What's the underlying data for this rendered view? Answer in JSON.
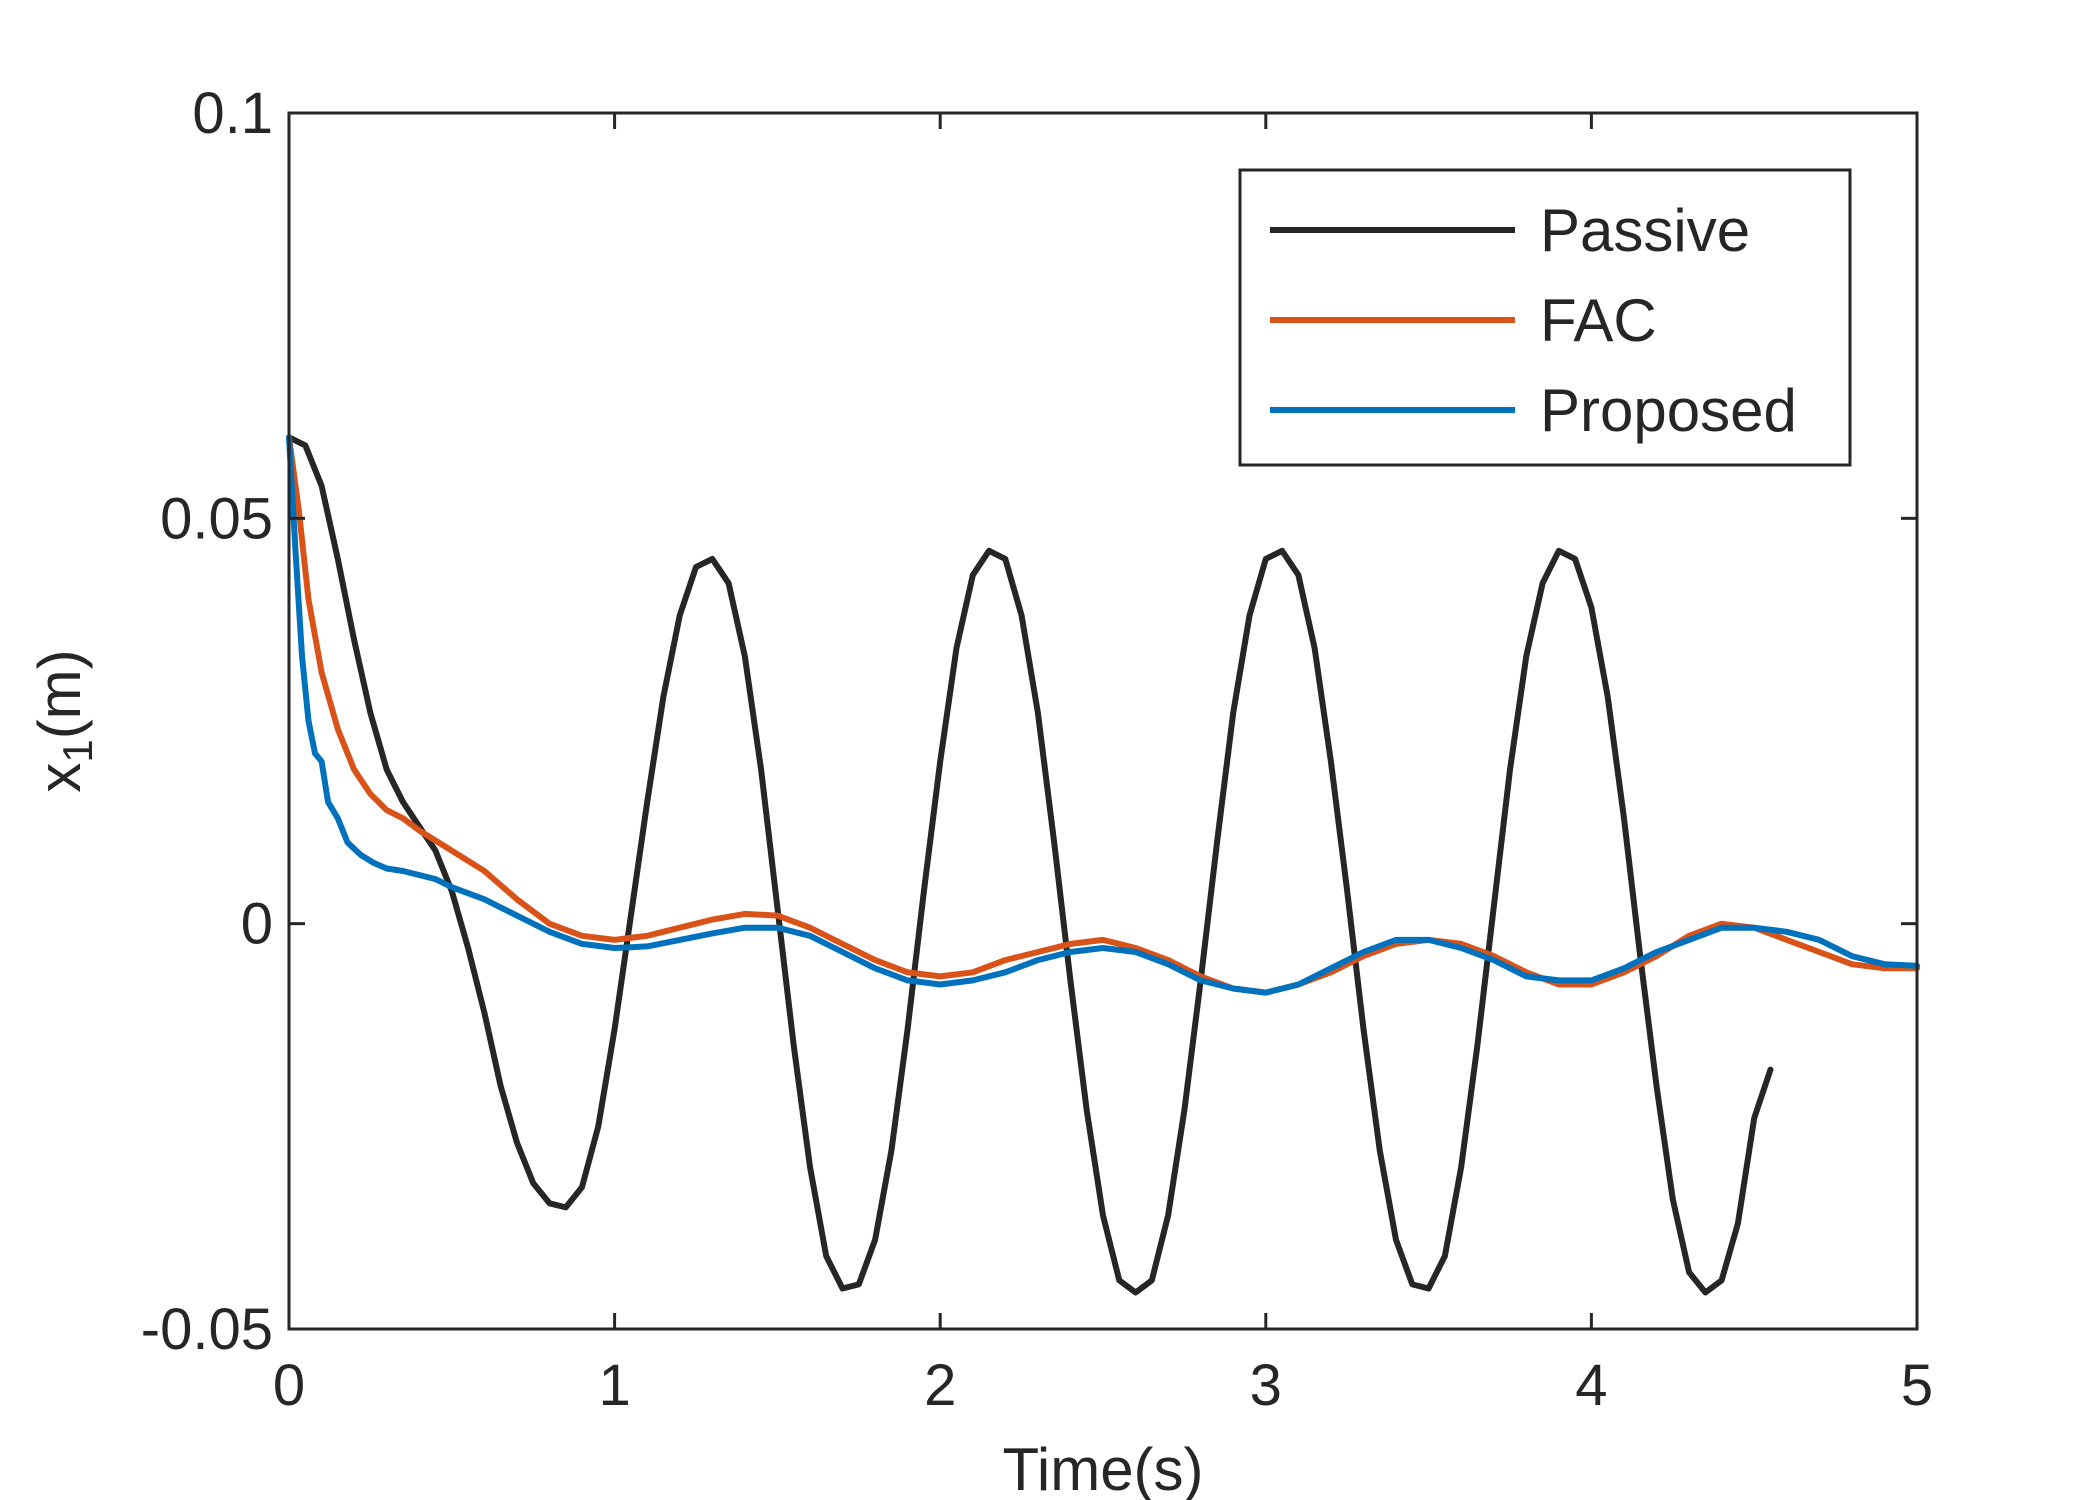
{
  "chart_data": {
    "type": "line",
    "title": "",
    "xlabel": "Time(s)",
    "ylabel_main": "x",
    "ylabel_sub": "1",
    "ylabel_unit": "(m)",
    "xlim": [
      0,
      5
    ],
    "ylim": [
      -0.05,
      0.1
    ],
    "xticks": [
      0,
      1,
      2,
      3,
      4,
      5
    ],
    "xtick_labels": [
      "0",
      "1",
      "2",
      "3",
      "4",
      "5"
    ],
    "yticks": [
      -0.05,
      0,
      0.05,
      0.1
    ],
    "ytick_labels": [
      "-0.05",
      "0",
      "0.05",
      "0.1"
    ],
    "grid": false,
    "legend_position": "top-right",
    "series": [
      {
        "name": "Passive",
        "color": "#262626",
        "points": [
          [
            0,
            0.06
          ],
          [
            0.05,
            0.059
          ],
          [
            0.1,
            0.054
          ],
          [
            0.15,
            0.045
          ],
          [
            0.2,
            0.035
          ],
          [
            0.25,
            0.026
          ],
          [
            0.3,
            0.019
          ],
          [
            0.35,
            0.015
          ],
          [
            0.4,
            0.012
          ],
          [
            0.45,
            0.009
          ],
          [
            0.5,
            0.004
          ],
          [
            0.55,
            -0.003
          ],
          [
            0.6,
            -0.011
          ],
          [
            0.65,
            -0.02
          ],
          [
            0.7,
            -0.027
          ],
          [
            0.75,
            -0.032
          ],
          [
            0.8,
            -0.0345
          ],
          [
            0.85,
            -0.035
          ],
          [
            0.9,
            -0.0325
          ],
          [
            0.95,
            -0.025
          ],
          [
            1.0,
            -0.013
          ],
          [
            1.05,
            0.001
          ],
          [
            1.1,
            0.015
          ],
          [
            1.15,
            0.028
          ],
          [
            1.2,
            0.038
          ],
          [
            1.25,
            0.044
          ],
          [
            1.3,
            0.045
          ],
          [
            1.35,
            0.042
          ],
          [
            1.4,
            0.033
          ],
          [
            1.45,
            0.019
          ],
          [
            1.5,
            0.002
          ],
          [
            1.55,
            -0.015
          ],
          [
            1.6,
            -0.03
          ],
          [
            1.65,
            -0.041
          ],
          [
            1.7,
            -0.045
          ],
          [
            1.75,
            -0.0445
          ],
          [
            1.8,
            -0.039
          ],
          [
            1.85,
            -0.028
          ],
          [
            1.9,
            -0.013
          ],
          [
            1.95,
            0.004
          ],
          [
            2.0,
            0.02
          ],
          [
            2.05,
            0.034
          ],
          [
            2.1,
            0.043
          ],
          [
            2.15,
            0.046
          ],
          [
            2.2,
            0.045
          ],
          [
            2.25,
            0.038
          ],
          [
            2.3,
            0.026
          ],
          [
            2.35,
            0.01
          ],
          [
            2.4,
            -0.007
          ],
          [
            2.45,
            -0.023
          ],
          [
            2.5,
            -0.036
          ],
          [
            2.55,
            -0.044
          ],
          [
            2.6,
            -0.0455
          ],
          [
            2.65,
            -0.044
          ],
          [
            2.7,
            -0.036
          ],
          [
            2.75,
            -0.023
          ],
          [
            2.8,
            -0.007
          ],
          [
            2.85,
            0.01
          ],
          [
            2.9,
            0.026
          ],
          [
            2.95,
            0.038
          ],
          [
            3.0,
            0.045
          ],
          [
            3.05,
            0.046
          ],
          [
            3.1,
            0.043
          ],
          [
            3.15,
            0.034
          ],
          [
            3.2,
            0.02
          ],
          [
            3.25,
            0.004
          ],
          [
            3.3,
            -0.013
          ],
          [
            3.35,
            -0.028
          ],
          [
            3.4,
            -0.039
          ],
          [
            3.45,
            -0.0445
          ],
          [
            3.5,
            -0.045
          ],
          [
            3.55,
            -0.041
          ],
          [
            3.6,
            -0.03
          ],
          [
            3.65,
            -0.015
          ],
          [
            3.7,
            0.002
          ],
          [
            3.75,
            0.019
          ],
          [
            3.8,
            0.033
          ],
          [
            3.85,
            0.042
          ],
          [
            3.9,
            0.046
          ],
          [
            3.95,
            0.045
          ],
          [
            4.0,
            0.039
          ],
          [
            4.05,
            0.028
          ],
          [
            4.1,
            0.013
          ],
          [
            4.15,
            -0.004
          ],
          [
            4.2,
            -0.02
          ],
          [
            4.25,
            -0.034
          ],
          [
            4.3,
            -0.043
          ],
          [
            4.35,
            -0.0455
          ],
          [
            4.4,
            -0.044
          ],
          [
            4.45,
            -0.037
          ],
          [
            4.5,
            -0.024
          ],
          [
            4.55,
            -0.018
          ]
        ]
      },
      {
        "name": "FAC",
        "color": "#D95319",
        "points": [
          [
            0,
            0.06
          ],
          [
            0.03,
            0.051
          ],
          [
            0.06,
            0.04
          ],
          [
            0.1,
            0.031
          ],
          [
            0.15,
            0.024
          ],
          [
            0.2,
            0.019
          ],
          [
            0.25,
            0.016
          ],
          [
            0.3,
            0.014
          ],
          [
            0.35,
            0.013
          ],
          [
            0.4,
            0.0115
          ],
          [
            0.5,
            0.009
          ],
          [
            0.6,
            0.0065
          ],
          [
            0.7,
            0.003
          ],
          [
            0.8,
            0.0
          ],
          [
            0.9,
            -0.0015
          ],
          [
            1.0,
            -0.002
          ],
          [
            1.1,
            -0.0015
          ],
          [
            1.2,
            -0.0005
          ],
          [
            1.3,
            0.0005
          ],
          [
            1.4,
            0.0012
          ],
          [
            1.5,
            0.001
          ],
          [
            1.6,
            -0.0005
          ],
          [
            1.7,
            -0.0025
          ],
          [
            1.8,
            -0.0045
          ],
          [
            1.9,
            -0.006
          ],
          [
            2.0,
            -0.0065
          ],
          [
            2.1,
            -0.006
          ],
          [
            2.2,
            -0.0045
          ],
          [
            2.3,
            -0.0035
          ],
          [
            2.4,
            -0.0025
          ],
          [
            2.5,
            -0.002
          ],
          [
            2.6,
            -0.003
          ],
          [
            2.7,
            -0.0045
          ],
          [
            2.8,
            -0.0065
          ],
          [
            2.9,
            -0.008
          ],
          [
            3.0,
            -0.0085
          ],
          [
            3.1,
            -0.0075
          ],
          [
            3.2,
            -0.006
          ],
          [
            3.3,
            -0.004
          ],
          [
            3.4,
            -0.0025
          ],
          [
            3.5,
            -0.002
          ],
          [
            3.6,
            -0.0025
          ],
          [
            3.7,
            -0.004
          ],
          [
            3.8,
            -0.006
          ],
          [
            3.9,
            -0.0075
          ],
          [
            4.0,
            -0.0075
          ],
          [
            4.1,
            -0.006
          ],
          [
            4.2,
            -0.004
          ],
          [
            4.3,
            -0.0015
          ],
          [
            4.4,
            0.0
          ],
          [
            4.5,
            -0.0005
          ],
          [
            4.6,
            -0.002
          ],
          [
            4.7,
            -0.0035
          ],
          [
            4.8,
            -0.005
          ],
          [
            4.9,
            -0.0055
          ],
          [
            5.0,
            -0.0055
          ]
        ]
      },
      {
        "name": "Proposed",
        "color": "#0072BD",
        "points": [
          [
            0,
            0.06
          ],
          [
            0.02,
            0.046
          ],
          [
            0.04,
            0.033
          ],
          [
            0.06,
            0.025
          ],
          [
            0.08,
            0.021
          ],
          [
            0.1,
            0.02
          ],
          [
            0.12,
            0.015
          ],
          [
            0.15,
            0.013
          ],
          [
            0.18,
            0.01
          ],
          [
            0.22,
            0.0085
          ],
          [
            0.26,
            0.0075
          ],
          [
            0.3,
            0.0068
          ],
          [
            0.35,
            0.0065
          ],
          [
            0.4,
            0.006
          ],
          [
            0.45,
            0.0055
          ],
          [
            0.5,
            0.0045
          ],
          [
            0.6,
            0.003
          ],
          [
            0.7,
            0.001
          ],
          [
            0.8,
            -0.001
          ],
          [
            0.9,
            -0.0025
          ],
          [
            1.0,
            -0.003
          ],
          [
            1.1,
            -0.0028
          ],
          [
            1.2,
            -0.002
          ],
          [
            1.3,
            -0.0012
          ],
          [
            1.4,
            -0.0005
          ],
          [
            1.5,
            -0.0005
          ],
          [
            1.6,
            -0.0015
          ],
          [
            1.7,
            -0.0035
          ],
          [
            1.8,
            -0.0055
          ],
          [
            1.9,
            -0.007
          ],
          [
            2.0,
            -0.0075
          ],
          [
            2.1,
            -0.007
          ],
          [
            2.2,
            -0.006
          ],
          [
            2.3,
            -0.0045
          ],
          [
            2.4,
            -0.0035
          ],
          [
            2.5,
            -0.003
          ],
          [
            2.6,
            -0.0035
          ],
          [
            2.7,
            -0.005
          ],
          [
            2.8,
            -0.007
          ],
          [
            2.9,
            -0.008
          ],
          [
            3.0,
            -0.0085
          ],
          [
            3.1,
            -0.0075
          ],
          [
            3.2,
            -0.0055
          ],
          [
            3.3,
            -0.0035
          ],
          [
            3.4,
            -0.002
          ],
          [
            3.5,
            -0.002
          ],
          [
            3.6,
            -0.003
          ],
          [
            3.7,
            -0.0045
          ],
          [
            3.8,
            -0.0065
          ],
          [
            3.9,
            -0.007
          ],
          [
            4.0,
            -0.007
          ],
          [
            4.1,
            -0.0055
          ],
          [
            4.2,
            -0.0035
          ],
          [
            4.3,
            -0.002
          ],
          [
            4.4,
            -0.0005
          ],
          [
            4.5,
            -0.0005
          ],
          [
            4.6,
            -0.001
          ],
          [
            4.7,
            -0.002
          ],
          [
            4.8,
            -0.004
          ],
          [
            4.9,
            -0.005
          ],
          [
            5.0,
            -0.0052
          ]
        ]
      }
    ]
  }
}
